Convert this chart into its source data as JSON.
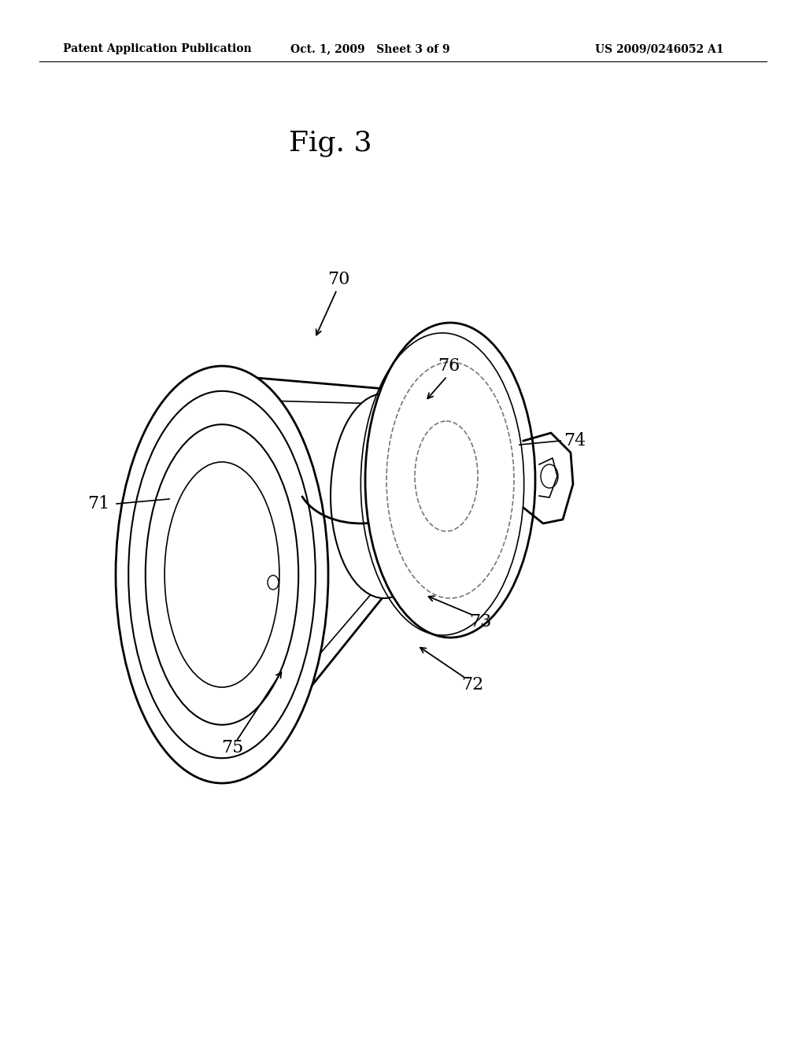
{
  "bg_color": "#ffffff",
  "line_color": "#000000",
  "dashed_color": "#777777",
  "header_left": "Patent Application Publication",
  "header_center": "Oct. 1, 2009   Sheet 3 of 9",
  "header_right": "US 2009/0246052 A1",
  "fig_label": "Fig. 3"
}
